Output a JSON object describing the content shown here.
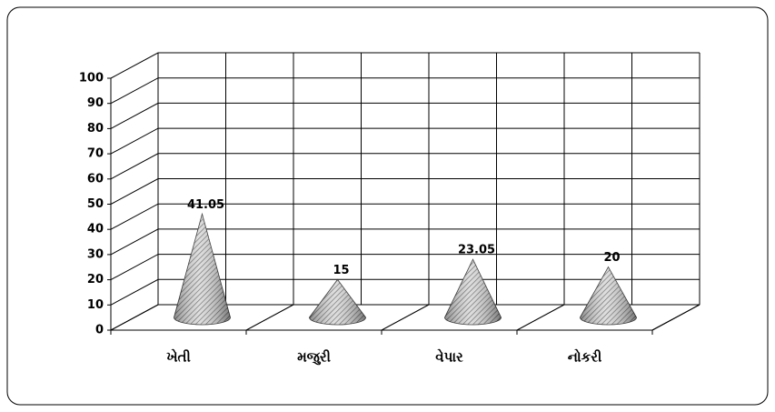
{
  "chart_data": {
    "type": "cone",
    "categories": [
      "ખેતી",
      "મજુરી",
      "વેપાર",
      "નોકરી"
    ],
    "values": [
      41.05,
      15,
      23.05,
      20
    ],
    "ylim": [
      0,
      100
    ],
    "yticks": [
      0,
      10,
      20,
      30,
      40,
      50,
      60,
      70,
      80,
      90,
      100
    ],
    "grid": true
  }
}
